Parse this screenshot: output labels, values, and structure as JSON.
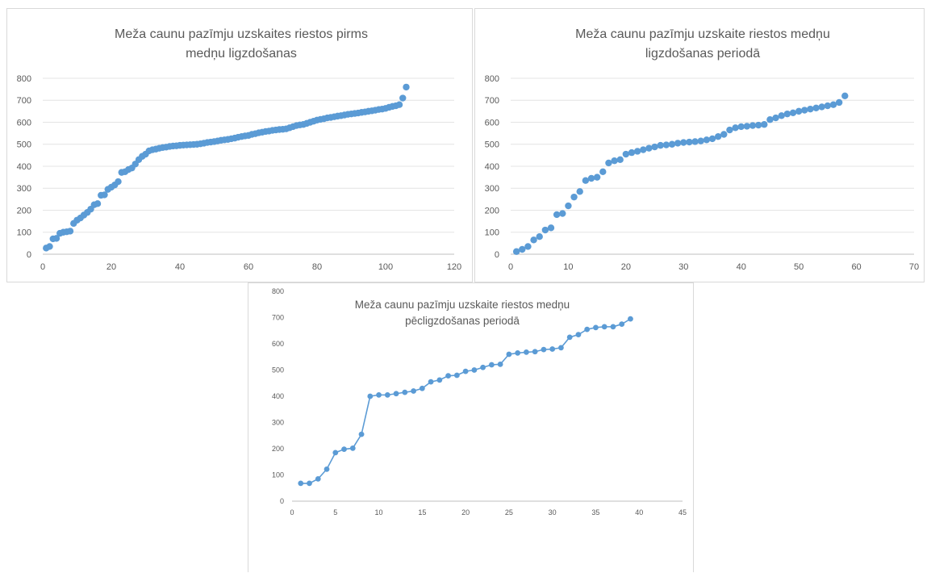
{
  "chart_data": [
    {
      "type": "scatter",
      "title_lines": [
        "Meža caunu pazīmju uzskaites riestos pirms",
        "medņu ligzdošanas"
      ],
      "xlabel": "",
      "ylabel": "",
      "xlim": [
        0,
        120
      ],
      "ylim": [
        0,
        800
      ],
      "x_ticks": [
        0,
        20,
        40,
        60,
        80,
        100,
        120
      ],
      "y_ticks": [
        0,
        100,
        200,
        300,
        400,
        500,
        600,
        700,
        800
      ],
      "grid": true,
      "legend": "none",
      "color": "#5b9bd5",
      "connected": false,
      "series": [
        {
          "x": [
            1,
            2,
            3,
            4,
            5,
            6,
            7,
            8,
            9,
            10,
            11,
            12,
            13,
            14,
            15,
            16,
            17,
            18,
            19,
            20,
            21,
            22,
            23,
            24,
            25,
            26,
            27,
            28,
            29,
            30,
            31,
            32,
            33,
            34,
            35,
            36,
            37,
            38,
            39,
            40,
            41,
            42,
            43,
            44,
            45,
            46,
            47,
            48,
            49,
            50,
            51,
            52,
            53,
            54,
            55,
            56,
            57,
            58,
            59,
            60,
            61,
            62,
            63,
            64,
            65,
            66,
            67,
            68,
            69,
            70,
            71,
            72,
            73,
            74,
            75,
            76,
            77,
            78,
            79,
            80,
            81,
            82,
            83,
            84,
            85,
            86,
            87,
            88,
            89,
            90,
            91,
            92,
            93,
            94,
            95,
            96,
            97,
            98,
            99,
            100,
            101,
            102,
            103,
            104,
            105,
            106
          ],
          "y": [
            28,
            35,
            70,
            72,
            95,
            100,
            102,
            105,
            140,
            155,
            165,
            178,
            190,
            205,
            225,
            230,
            268,
            270,
            295,
            305,
            315,
            330,
            372,
            375,
            385,
            392,
            410,
            430,
            445,
            455,
            470,
            475,
            478,
            482,
            485,
            487,
            490,
            492,
            493,
            495,
            496,
            497,
            498,
            499,
            500,
            502,
            505,
            508,
            510,
            512,
            515,
            518,
            520,
            522,
            525,
            528,
            532,
            535,
            538,
            540,
            545,
            548,
            552,
            555,
            558,
            560,
            563,
            565,
            567,
            568,
            570,
            575,
            580,
            585,
            588,
            590,
            595,
            600,
            605,
            610,
            613,
            616,
            620,
            622,
            625,
            628,
            630,
            633,
            636,
            638,
            640,
            642,
            645,
            647,
            650,
            652,
            655,
            658,
            660,
            663,
            668,
            672,
            675,
            680,
            710,
            760
          ]
        }
      ]
    },
    {
      "type": "scatter",
      "title_lines": [
        "Meža caunu pazīmju uzskaite riestos medņu",
        "ligzdošanas periodā"
      ],
      "xlabel": "",
      "ylabel": "",
      "xlim": [
        0,
        70
      ],
      "ylim": [
        0,
        800
      ],
      "x_ticks": [
        0,
        10,
        20,
        30,
        40,
        50,
        60,
        70
      ],
      "y_ticks": [
        0,
        100,
        200,
        300,
        400,
        500,
        600,
        700,
        800
      ],
      "grid": true,
      "legend": "none",
      "color": "#5b9bd5",
      "connected": false,
      "series": [
        {
          "x": [
            1,
            2,
            3,
            4,
            5,
            6,
            7,
            8,
            9,
            10,
            11,
            12,
            13,
            14,
            15,
            16,
            17,
            18,
            19,
            20,
            21,
            22,
            23,
            24,
            25,
            26,
            27,
            28,
            29,
            30,
            31,
            32,
            33,
            34,
            35,
            36,
            37,
            38,
            39,
            40,
            41,
            42,
            43,
            44,
            45,
            46,
            47,
            48,
            49,
            50,
            51,
            52,
            53,
            54,
            55,
            56,
            57,
            58
          ],
          "y": [
            12,
            22,
            35,
            65,
            80,
            110,
            120,
            180,
            185,
            220,
            260,
            285,
            335,
            345,
            350,
            375,
            415,
            425,
            430,
            455,
            462,
            468,
            475,
            482,
            488,
            495,
            497,
            500,
            505,
            508,
            510,
            512,
            515,
            520,
            525,
            535,
            545,
            565,
            575,
            580,
            582,
            585,
            587,
            590,
            612,
            620,
            630,
            638,
            643,
            650,
            655,
            660,
            665,
            670,
            675,
            680,
            690,
            720
          ]
        }
      ]
    },
    {
      "type": "line",
      "title_lines": [
        "Meža caunu pazīmju uzskaite riestos medņu",
        "pēcligzdošanas periodā"
      ],
      "xlabel": "",
      "ylabel": "",
      "xlim": [
        0,
        45
      ],
      "ylim": [
        0,
        800
      ],
      "x_ticks": [
        0,
        5,
        10,
        15,
        20,
        25,
        30,
        35,
        40,
        45
      ],
      "y_ticks": [
        0,
        100,
        200,
        300,
        400,
        500,
        600,
        700,
        800
      ],
      "grid": false,
      "legend": "none",
      "color": "#5b9bd5",
      "connected": true,
      "series": [
        {
          "x": [
            1,
            2,
            3,
            4,
            5,
            6,
            7,
            8,
            9,
            10,
            11,
            12,
            13,
            14,
            15,
            16,
            17,
            18,
            19,
            20,
            21,
            22,
            23,
            24,
            25,
            26,
            27,
            28,
            29,
            30,
            31,
            32,
            33,
            34,
            35,
            36,
            37,
            38,
            39
          ],
          "y": [
            68,
            68,
            85,
            122,
            185,
            198,
            202,
            255,
            400,
            405,
            405,
            410,
            415,
            420,
            430,
            455,
            462,
            478,
            480,
            495,
            500,
            510,
            520,
            522,
            560,
            565,
            568,
            570,
            578,
            580,
            585,
            625,
            635,
            655,
            662,
            665,
            665,
            675,
            695
          ]
        }
      ]
    }
  ]
}
